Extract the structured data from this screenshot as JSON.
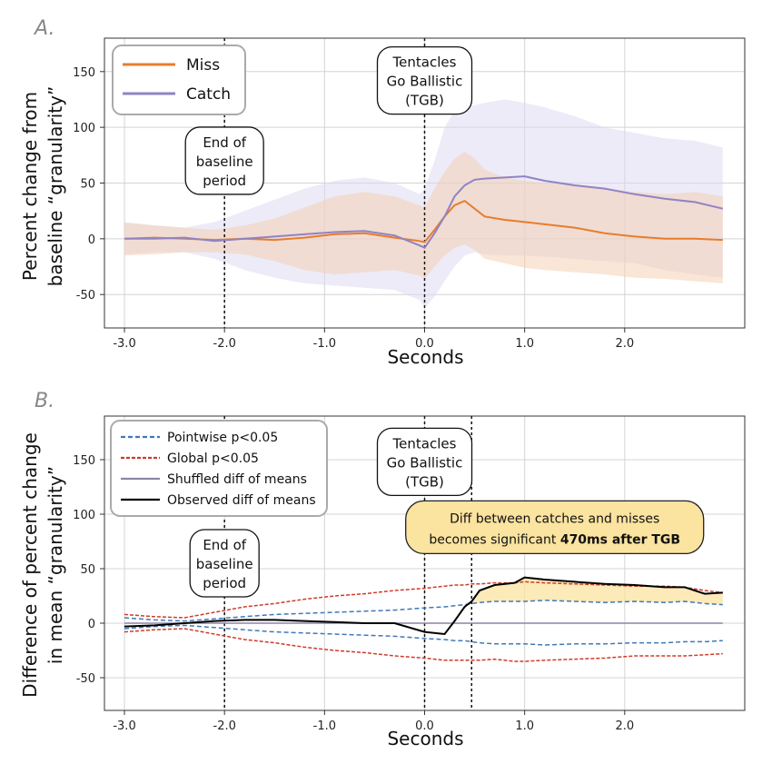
{
  "chart_data": [
    {
      "type": "line",
      "panel_label": "A.",
      "xlabel": "Seconds",
      "ylabel": [
        "Percent change from",
        "baseline “granularity”"
      ],
      "xlim": [
        -3.2,
        3.2
      ],
      "ylim": [
        -80,
        180
      ],
      "xticks": [
        -3.0,
        -2.0,
        -1.0,
        0.0,
        1.0,
        2.0
      ],
      "xtick_labels": [
        "-3.0",
        "-2.0",
        "-1.0",
        "0.0",
        "1.0",
        "2.0"
      ],
      "yticks": [
        -50,
        0,
        50,
        100,
        150
      ],
      "ytick_labels": [
        "-50",
        "0",
        "50",
        "100",
        "150"
      ],
      "grid": true,
      "legend_position": "top-left",
      "vlines": [
        -2.0,
        0.0
      ],
      "annotations": [
        {
          "text": [
            "End of",
            "baseline",
            "period"
          ],
          "x": -2.0,
          "y": 70
        },
        {
          "text": [
            "Tentacles",
            "Go Ballistic",
            "(TGB)"
          ],
          "x": 0.0,
          "y": 142
        }
      ],
      "x": [
        -3.0,
        -2.7,
        -2.4,
        -2.1,
        -1.8,
        -1.5,
        -1.2,
        -0.9,
        -0.6,
        -0.3,
        -0.05,
        0.0,
        0.1,
        0.2,
        0.3,
        0.4,
        0.5,
        0.6,
        0.8,
        1.0,
        1.2,
        1.5,
        1.8,
        2.1,
        2.4,
        2.7,
        2.98
      ],
      "series": [
        {
          "name": "Miss",
          "color": "#e87d2c",
          "band_color": "#f4cdb0",
          "values": [
            0,
            1,
            0,
            -1,
            0,
            -1,
            1,
            4,
            5,
            1,
            -2,
            -3,
            8,
            20,
            30,
            34,
            27,
            20,
            17,
            15,
            13,
            10,
            5,
            2,
            0,
            0,
            -1
          ],
          "upper": [
            15,
            12,
            10,
            8,
            12,
            18,
            28,
            38,
            42,
            38,
            30,
            28,
            45,
            60,
            72,
            78,
            72,
            62,
            55,
            52,
            50,
            48,
            45,
            42,
            40,
            42,
            38
          ],
          "lower": [
            -15,
            -14,
            -12,
            -12,
            -14,
            -20,
            -28,
            -32,
            -30,
            -28,
            -33,
            -36,
            -25,
            -15,
            -8,
            -5,
            -10,
            -18,
            -22,
            -26,
            -28,
            -30,
            -32,
            -35,
            -36,
            -38,
            -40
          ]
        },
        {
          "name": "Catch",
          "color": "#9183c4",
          "band_color": "#dcd7f0",
          "values": [
            0,
            0,
            1,
            -2,
            0,
            2,
            4,
            6,
            7,
            3,
            -6,
            -8,
            5,
            20,
            38,
            48,
            53,
            54,
            55,
            56,
            52,
            48,
            45,
            40,
            36,
            33,
            27
          ],
          "upper": [
            14,
            12,
            10,
            15,
            25,
            35,
            45,
            52,
            55,
            50,
            40,
            45,
            70,
            100,
            115,
            118,
            120,
            122,
            125,
            122,
            118,
            110,
            100,
            95,
            90,
            88,
            82
          ],
          "lower": [
            -14,
            -12,
            -12,
            -18,
            -28,
            -35,
            -40,
            -42,
            -44,
            -46,
            -55,
            -62,
            -52,
            -38,
            -25,
            -15,
            -12,
            -14,
            -15,
            -15,
            -16,
            -18,
            -20,
            -22,
            -28,
            -32,
            -35
          ]
        }
      ]
    },
    {
      "type": "line",
      "panel_label": "B.",
      "xlabel": "Seconds",
      "ylabel": [
        "Difference of percent change",
        "in mean “granularity”"
      ],
      "xlim": [
        -3.2,
        3.2
      ],
      "ylim": [
        -80,
        190
      ],
      "xticks": [
        -3.0,
        -2.0,
        -1.0,
        0.0,
        1.0,
        2.0
      ],
      "xtick_labels": [
        "-3.0",
        "-2.0",
        "-1.0",
        "0.0",
        "1.0",
        "2.0"
      ],
      "yticks": [
        -50,
        0,
        50,
        100,
        150
      ],
      "ytick_labels": [
        "-50",
        "0",
        "50",
        "100",
        "150"
      ],
      "grid": true,
      "legend_position": "top-left",
      "vlines": [
        -2.0,
        0.0,
        0.47
      ],
      "annotations": [
        {
          "text": [
            "End of",
            "baseline",
            "period"
          ],
          "x": -2.0,
          "y": 55
        },
        {
          "text": [
            "Tentacles",
            "Go Ballistic",
            "(TGB)"
          ],
          "x": 0.0,
          "y": 148
        }
      ],
      "highlight": {
        "line1": "Diff between catches and misses",
        "line2_prefix": "becomes significant ",
        "line2_bold": "470ms after TGB",
        "fill_color": "#fbe3a0",
        "x": 1.3,
        "y": 88
      },
      "x": [
        -3.0,
        -2.7,
        -2.4,
        -2.1,
        -1.8,
        -1.5,
        -1.2,
        -0.9,
        -0.6,
        -0.3,
        0.0,
        0.2,
        0.3,
        0.4,
        0.47,
        0.55,
        0.7,
        0.9,
        1.0,
        1.2,
        1.5,
        1.8,
        2.1,
        2.4,
        2.6,
        2.8,
        2.98
      ],
      "series": [
        {
          "name": "Pointwise p<0.05",
          "color": "#3f79b8",
          "dash": "5,3",
          "upper": [
            5,
            3,
            2,
            4,
            6,
            8,
            9,
            10,
            11,
            12,
            14,
            15,
            16,
            17,
            18,
            19,
            20,
            20,
            20,
            21,
            20,
            19,
            20,
            19,
            20,
            18,
            17
          ],
          "lower": [
            -5,
            -3,
            -2,
            -4,
            -6,
            -8,
            -9,
            -10,
            -11,
            -12,
            -14,
            -15,
            -16,
            -16,
            -17,
            -18,
            -19,
            -19,
            -19,
            -20,
            -19,
            -19,
            -18,
            -18,
            -17,
            -17,
            -16
          ]
        },
        {
          "name": "Global p<0.05",
          "color": "#d03a2a",
          "dash": "4,2",
          "upper": [
            8,
            6,
            5,
            10,
            15,
            18,
            22,
            25,
            27,
            30,
            32,
            34,
            35,
            35,
            36,
            36,
            37,
            37,
            38,
            37,
            36,
            35,
            34,
            34,
            33,
            30,
            28
          ],
          "lower": [
            -8,
            -6,
            -5,
            -10,
            -15,
            -18,
            -22,
            -25,
            -27,
            -30,
            -32,
            -34,
            -34,
            -34,
            -34,
            -34,
            -33,
            -35,
            -35,
            -34,
            -33,
            -32,
            -30,
            -30,
            -30,
            -29,
            -28
          ]
        },
        {
          "name": "Shuffled diff of means",
          "color": "#8e84a6",
          "values": [
            0,
            0,
            0,
            0,
            0,
            0,
            0,
            0,
            0,
            0,
            0,
            0,
            0,
            0,
            0,
            0,
            0,
            0,
            0,
            0,
            0,
            0,
            0,
            0,
            0,
            0,
            0
          ]
        },
        {
          "name": "Observed diff of means",
          "color": "#000000",
          "values": [
            -3,
            -2,
            0,
            2,
            3,
            3,
            2,
            1,
            0,
            0,
            -8,
            -10,
            2,
            15,
            20,
            30,
            35,
            37,
            42,
            40,
            38,
            36,
            35,
            33,
            33,
            27,
            28
          ]
        }
      ]
    }
  ]
}
